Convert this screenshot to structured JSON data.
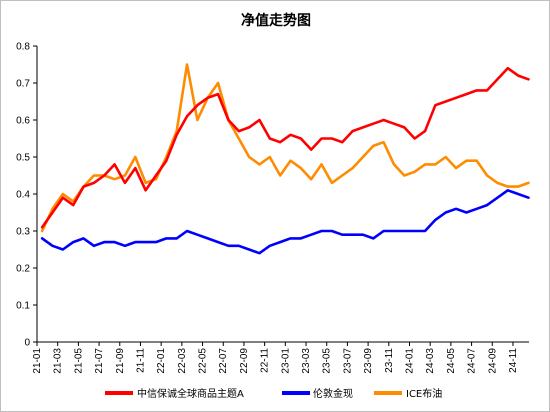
{
  "chart_data": {
    "type": "line",
    "title": "净值走势图",
    "xlabel": "",
    "ylabel": "",
    "ylim": [
      0,
      0.8
    ],
    "y_ticks": [
      "0",
      "0.1",
      "0.2",
      "0.3",
      "0.4",
      "0.5",
      "0.6",
      "0.7",
      "0.8"
    ],
    "x_ticks": [
      "21-01",
      "21-03",
      "21-05",
      "21-07",
      "21-09",
      "21-11",
      "22-01",
      "22-03",
      "22-05",
      "22-07",
      "22-09",
      "22-11",
      "23-01",
      "23-03",
      "23-05",
      "23-07",
      "23-09",
      "23-11",
      "24-01",
      "24-03",
      "24-05",
      "24-07",
      "24-09",
      "24-11"
    ],
    "x_range": [
      "2021-01",
      "2024-12"
    ],
    "grid": false,
    "legend_position": "bottom",
    "series": [
      {
        "name": "中信保诚全球商品主题A",
        "color": "#ff0000",
        "x": [
          "2021-01",
          "2021-02",
          "2021-03",
          "2021-04",
          "2021-05",
          "2021-06",
          "2021-07",
          "2021-08",
          "2021-09",
          "2021-10",
          "2021-11",
          "2021-12",
          "2022-01",
          "2022-02",
          "2022-03",
          "2022-04",
          "2022-05",
          "2022-06",
          "2022-07",
          "2022-08",
          "2022-09",
          "2022-10",
          "2022-11",
          "2022-12",
          "2023-01",
          "2023-02",
          "2023-03",
          "2023-04",
          "2023-05",
          "2023-06",
          "2023-07",
          "2023-08",
          "2023-09",
          "2023-10",
          "2023-11",
          "2023-12",
          "2024-01",
          "2024-02",
          "2024-03",
          "2024-04",
          "2024-05",
          "2024-06",
          "2024-07",
          "2024-08",
          "2024-09",
          "2024-10",
          "2024-11",
          "2024-12"
        ],
        "values": [
          0.31,
          0.35,
          0.39,
          0.37,
          0.42,
          0.43,
          0.45,
          0.48,
          0.43,
          0.47,
          0.41,
          0.45,
          0.49,
          0.56,
          0.61,
          0.64,
          0.66,
          0.67,
          0.6,
          0.57,
          0.58,
          0.6,
          0.55,
          0.54,
          0.56,
          0.55,
          0.52,
          0.55,
          0.55,
          0.54,
          0.57,
          0.58,
          0.59,
          0.6,
          0.59,
          0.58,
          0.55,
          0.57,
          0.64,
          0.65,
          0.66,
          0.67,
          0.68,
          0.68,
          0.71,
          0.74,
          0.72,
          0.71
        ]
      },
      {
        "name": "伦敦金现",
        "color": "#0000ff",
        "x": [
          "2021-01",
          "2021-02",
          "2021-03",
          "2021-04",
          "2021-05",
          "2021-06",
          "2021-07",
          "2021-08",
          "2021-09",
          "2021-10",
          "2021-11",
          "2021-12",
          "2022-01",
          "2022-02",
          "2022-03",
          "2022-04",
          "2022-05",
          "2022-06",
          "2022-07",
          "2022-08",
          "2022-09",
          "2022-10",
          "2022-11",
          "2022-12",
          "2023-01",
          "2023-02",
          "2023-03",
          "2023-04",
          "2023-05",
          "2023-06",
          "2023-07",
          "2023-08",
          "2023-09",
          "2023-10",
          "2023-11",
          "2023-12",
          "2024-01",
          "2024-02",
          "2024-03",
          "2024-04",
          "2024-05",
          "2024-06",
          "2024-07",
          "2024-08",
          "2024-09",
          "2024-10",
          "2024-11",
          "2024-12"
        ],
        "values": [
          0.28,
          0.26,
          0.25,
          0.27,
          0.28,
          0.26,
          0.27,
          0.27,
          0.26,
          0.27,
          0.27,
          0.27,
          0.28,
          0.28,
          0.3,
          0.29,
          0.28,
          0.27,
          0.26,
          0.26,
          0.25,
          0.24,
          0.26,
          0.27,
          0.28,
          0.28,
          0.29,
          0.3,
          0.3,
          0.29,
          0.29,
          0.29,
          0.28,
          0.3,
          0.3,
          0.3,
          0.3,
          0.3,
          0.33,
          0.35,
          0.36,
          0.35,
          0.36,
          0.37,
          0.39,
          0.41,
          0.4,
          0.39
        ]
      },
      {
        "name": "ICE布油",
        "color": "#ff8c00",
        "x": [
          "2021-01",
          "2021-02",
          "2021-03",
          "2021-04",
          "2021-05",
          "2021-06",
          "2021-07",
          "2021-08",
          "2021-09",
          "2021-10",
          "2021-11",
          "2021-12",
          "2022-01",
          "2022-02",
          "2022-03",
          "2022-04",
          "2022-05",
          "2022-06",
          "2022-07",
          "2022-08",
          "2022-09",
          "2022-10",
          "2022-11",
          "2022-12",
          "2023-01",
          "2023-02",
          "2023-03",
          "2023-04",
          "2023-05",
          "2023-06",
          "2023-07",
          "2023-08",
          "2023-09",
          "2023-10",
          "2023-11",
          "2023-12",
          "2024-01",
          "2024-02",
          "2024-03",
          "2024-04",
          "2024-05",
          "2024-06",
          "2024-07",
          "2024-08",
          "2024-09",
          "2024-10",
          "2024-11",
          "2024-12"
        ],
        "values": [
          0.3,
          0.36,
          0.4,
          0.38,
          0.42,
          0.45,
          0.45,
          0.44,
          0.45,
          0.5,
          0.43,
          0.44,
          0.5,
          0.57,
          0.75,
          0.6,
          0.66,
          0.7,
          0.6,
          0.55,
          0.5,
          0.48,
          0.5,
          0.45,
          0.49,
          0.47,
          0.44,
          0.48,
          0.43,
          0.45,
          0.47,
          0.5,
          0.53,
          0.54,
          0.48,
          0.45,
          0.46,
          0.48,
          0.48,
          0.5,
          0.47,
          0.49,
          0.49,
          0.45,
          0.43,
          0.42,
          0.42,
          0.43
        ]
      }
    ]
  }
}
